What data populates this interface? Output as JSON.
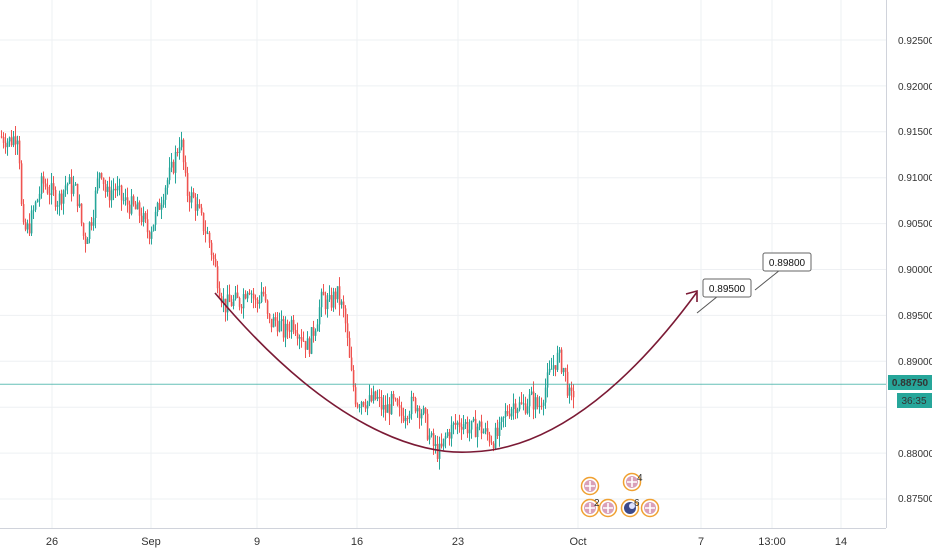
{
  "chart_data": {
    "type": "candlestick",
    "title": "",
    "grid": true,
    "colors": {
      "up": "#26a69a",
      "down": "#ef5350",
      "curve": "#7b1a35",
      "last_price": "#26a69a",
      "grid": "#eef0f3"
    },
    "y_axis": {
      "position": "right",
      "range": [
        0.8745,
        0.9285
      ],
      "tick_labels": [
        "0.92500",
        "0.92000",
        "0.91500",
        "0.91000",
        "0.90500",
        "0.90000",
        "0.89500",
        "0.89000",
        "0.88000",
        "0.87500"
      ]
    },
    "x_axis": {
      "tick_labels": [
        "26",
        "Sep",
        "9",
        "16",
        "23",
        "Oct",
        "7",
        "13:00",
        "14"
      ]
    },
    "last_price": {
      "value": "0.88750",
      "countdown": "36:35"
    },
    "annotations": [
      {
        "label": "0.89500",
        "price": 0.895
      },
      {
        "label": "0.89800",
        "price": 0.898
      }
    ],
    "events": [
      {
        "count": "4",
        "kind": "uk-flag"
      },
      {
        "count": "2",
        "kind": "uk-flag"
      },
      {
        "count": "6",
        "kind": "moon-flag"
      }
    ],
    "price_path": [
      [
        0,
        0.9145
      ],
      [
        10,
        0.914
      ],
      [
        18,
        0.915
      ],
      [
        22,
        0.904
      ],
      [
        28,
        0.9045
      ],
      [
        35,
        0.907
      ],
      [
        42,
        0.9095
      ],
      [
        50,
        0.9085
      ],
      [
        58,
        0.9075
      ],
      [
        66,
        0.9095
      ],
      [
        76,
        0.9085
      ],
      [
        84,
        0.903
      ],
      [
        92,
        0.906
      ],
      [
        100,
        0.9115
      ],
      [
        106,
        0.908
      ],
      [
        114,
        0.909
      ],
      [
        122,
        0.9075
      ],
      [
        130,
        0.907
      ],
      [
        140,
        0.906
      ],
      [
        148,
        0.904
      ],
      [
        156,
        0.906
      ],
      [
        164,
        0.909
      ],
      [
        172,
        0.911
      ],
      [
        180,
        0.9145
      ],
      [
        186,
        0.9085
      ],
      [
        194,
        0.9075
      ],
      [
        202,
        0.905
      ],
      [
        208,
        0.9035
      ],
      [
        216,
        0.8995
      ],
      [
        224,
        0.896
      ],
      [
        232,
        0.8965
      ],
      [
        240,
        0.8965
      ],
      [
        248,
        0.8985
      ],
      [
        256,
        0.896
      ],
      [
        262,
        0.898
      ],
      [
        268,
        0.894
      ],
      [
        276,
        0.8945
      ],
      [
        284,
        0.893
      ],
      [
        292,
        0.8945
      ],
      [
        300,
        0.893
      ],
      [
        308,
        0.8915
      ],
      [
        316,
        0.8945
      ],
      [
        322,
        0.897
      ],
      [
        328,
        0.896
      ],
      [
        336,
        0.8975
      ],
      [
        344,
        0.895
      ],
      [
        350,
        0.889
      ],
      [
        356,
        0.8855
      ],
      [
        362,
        0.886
      ],
      [
        368,
        0.8855
      ],
      [
        376,
        0.886
      ],
      [
        384,
        0.8845
      ],
      [
        392,
        0.8855
      ],
      [
        400,
        0.884
      ],
      [
        408,
        0.885
      ],
      [
        414,
        0.8855
      ],
      [
        422,
        0.8845
      ],
      [
        428,
        0.882
      ],
      [
        434,
        0.8805
      ],
      [
        440,
        0.88
      ],
      [
        446,
        0.882
      ],
      [
        454,
        0.883
      ],
      [
        462,
        0.8835
      ],
      [
        470,
        0.8825
      ],
      [
        478,
        0.883
      ],
      [
        486,
        0.882
      ],
      [
        492,
        0.8815
      ],
      [
        498,
        0.882
      ],
      [
        506,
        0.8845
      ],
      [
        514,
        0.8855
      ],
      [
        522,
        0.885
      ],
      [
        530,
        0.886
      ],
      [
        538,
        0.885
      ],
      [
        546,
        0.8875
      ],
      [
        552,
        0.8895
      ],
      [
        558,
        0.8905
      ],
      [
        564,
        0.889
      ],
      [
        570,
        0.8855
      ],
      [
        574,
        0.887
      ]
    ]
  }
}
